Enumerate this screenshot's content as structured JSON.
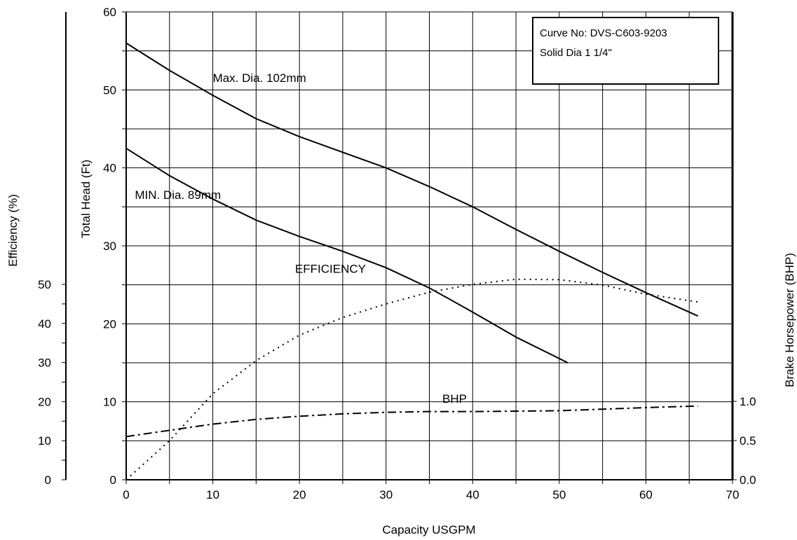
{
  "chart_data": {
    "type": "line",
    "xlabel": "Capacity USGPM",
    "ylabel_left": "Total Head (Ft)",
    "ylabel_far_left": "Efficiency (%)",
    "ylabel_right": "Brake Horsepower (BHP)",
    "xlim": [
      0,
      70
    ],
    "ylim_head": [
      0,
      60
    ],
    "ylim_efficiency": [
      0,
      50
    ],
    "ylim_bhp": [
      0,
      1.0
    ],
    "grid": true,
    "x_ticks": [
      "0",
      "10",
      "20",
      "30",
      "40",
      "50",
      "60",
      "70"
    ],
    "head_ticks": [
      "0",
      "10",
      "20",
      "30",
      "40",
      "50",
      "60"
    ],
    "efficiency_ticks": [
      "0",
      "10",
      "20",
      "30",
      "40",
      "50"
    ],
    "bhp_ticks": [
      "0.0",
      "0.5",
      "1.0"
    ],
    "series": [
      {
        "name": "Max. Dia. 102mm",
        "axis": "head",
        "style": "solid",
        "x": [
          0,
          5,
          10,
          15,
          20,
          25,
          30,
          35,
          40,
          45,
          50,
          55,
          60,
          66
        ],
        "y": [
          56,
          52.5,
          49.3,
          46.3,
          44,
          42,
          40,
          37.6,
          35,
          32.1,
          29.3,
          26.6,
          24,
          21
        ]
      },
      {
        "name": "MIN. Dia. 89mm",
        "axis": "head",
        "style": "solid",
        "x": [
          0,
          5,
          10,
          15,
          20,
          25,
          30,
          35,
          40,
          45,
          51
        ],
        "y": [
          42.5,
          39,
          36,
          33.3,
          31.2,
          29.3,
          27.2,
          24.6,
          21.5,
          18.3,
          15
        ]
      },
      {
        "name": "EFFICIENCY",
        "axis": "efficiency",
        "style": "dotted",
        "x": [
          0,
          5,
          10,
          15,
          20,
          25,
          30,
          35,
          40,
          45,
          50,
          55,
          60,
          66
        ],
        "y": [
          0,
          10,
          22,
          30.5,
          37,
          41.5,
          45,
          48,
          50,
          51.3,
          51.2,
          49.8,
          47.5,
          45.5
        ]
      },
      {
        "name": "BHP",
        "axis": "bhp",
        "style": "dash-dot",
        "x": [
          0,
          5,
          10,
          15,
          20,
          25,
          30,
          35,
          40,
          45,
          50,
          55,
          60,
          66
        ],
        "y": [
          0.55,
          0.63,
          0.71,
          0.77,
          0.81,
          0.84,
          0.86,
          0.87,
          0.87,
          0.875,
          0.88,
          0.9,
          0.92,
          0.94
        ]
      }
    ],
    "annotations": [
      {
        "text": "Max. Dia. 102mm",
        "x": 10,
        "y": 51
      },
      {
        "text": "MIN. Dia. 89mm",
        "x": 1,
        "y": 36
      },
      {
        "text": "EFFICIENCY",
        "x": 19.5,
        "y": 53
      },
      {
        "text": "BHP",
        "x": 36.5,
        "y": 0.98
      }
    ],
    "legend": {
      "position": "top-right",
      "lines": [
        "Curve No: DVS-C603-9203",
        "Solid Dia 1 1/4\""
      ]
    }
  }
}
